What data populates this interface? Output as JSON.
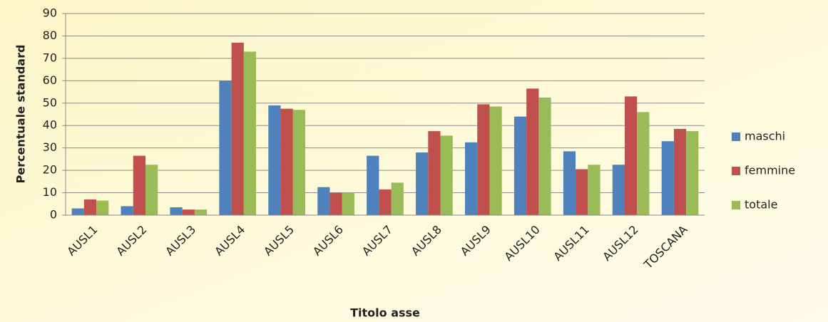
{
  "chart_data": {
    "type": "bar",
    "x_label": "Titolo asse",
    "y_label": "Percentuale standard",
    "categories": [
      "AUSL1",
      "AUSL2",
      "AUSL3",
      "AUSL4",
      "AUSL5",
      "AUSL6",
      "AUSL7",
      "AUSL8",
      "AUSL9",
      "AUSL10",
      "AUSL11",
      "AUSL12",
      "TOSCANA"
    ],
    "series": [
      {
        "name": "maschi",
        "color": "#4f81bd",
        "values": [
          3,
          4,
          3.5,
          60,
          49,
          12.5,
          26.5,
          28,
          32.5,
          44,
          28.5,
          22.5,
          33
        ]
      },
      {
        "name": "femmine",
        "color": "#c0504d",
        "values": [
          7,
          26.5,
          2.5,
          77,
          47.5,
          10,
          11.5,
          37.5,
          49.5,
          56.5,
          20.5,
          53,
          38.5
        ]
      },
      {
        "name": "totale",
        "color": "#9bbb59",
        "values": [
          6.5,
          22.5,
          2.5,
          73,
          47,
          10,
          14.5,
          35.5,
          48.5,
          52.5,
          22.5,
          46,
          37.5
        ]
      }
    ],
    "ylim": [
      0,
      90
    ],
    "yticks": [
      0,
      10,
      20,
      30,
      40,
      50,
      60,
      70,
      80,
      90
    ],
    "grid": true,
    "legend": "right"
  }
}
